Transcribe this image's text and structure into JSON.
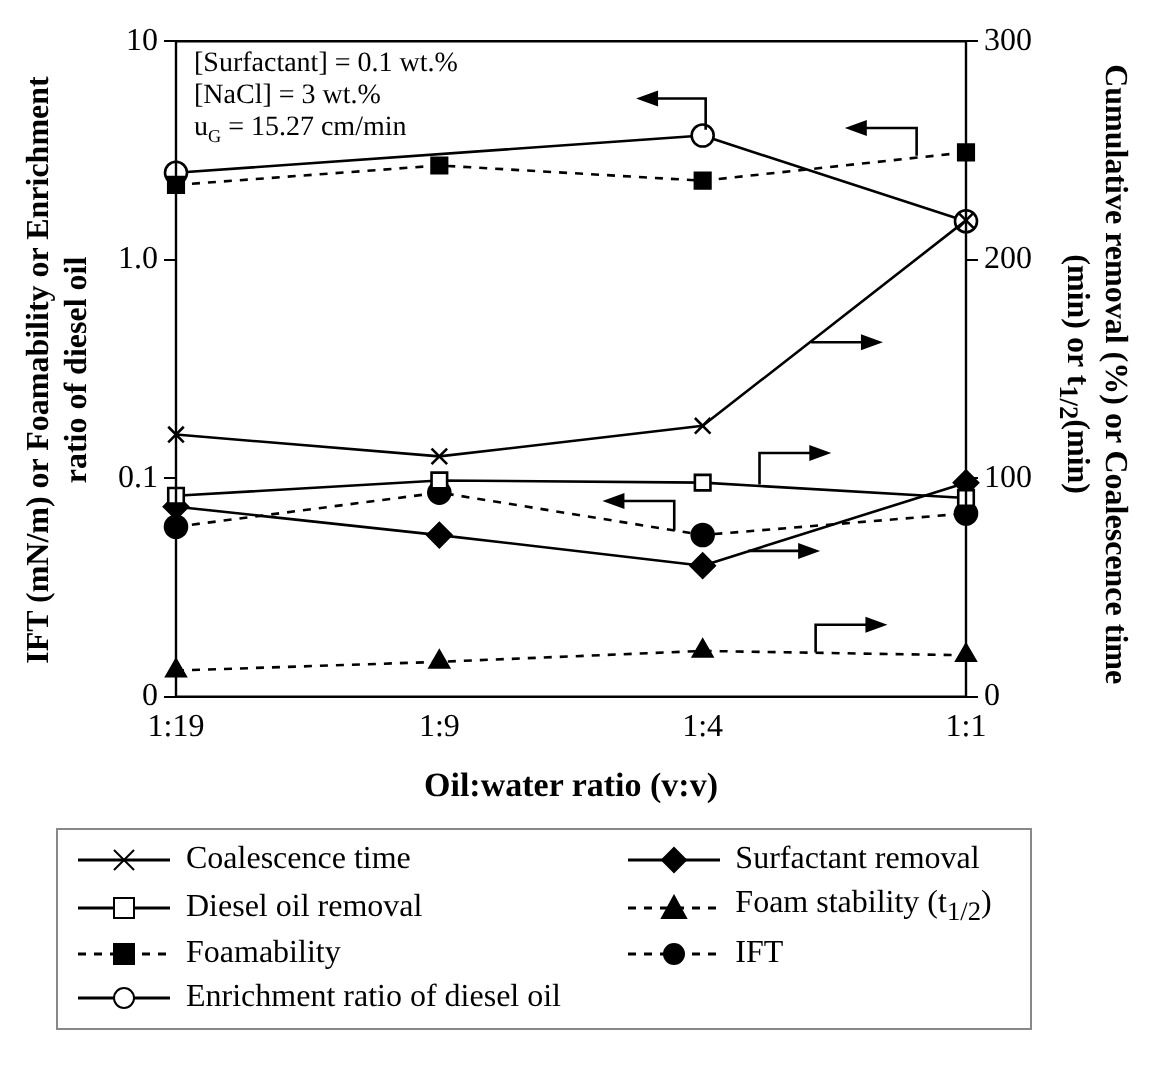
{
  "chart_data": {
    "type": "line",
    "xlabel": "Oil:water ratio (v:v)",
    "ylabel": "IFT (mN/m) or Foamability or Enrichment ratio of diesel oil",
    "y2label": "Cumulative removal (%) or Coalescence time (min) or t$_{1/2}$(min)",
    "categories": [
      "1:19",
      "1:9",
      "1:4",
      "1:1"
    ],
    "log": "y",
    "ylim": [
      0.01,
      10
    ],
    "yticks": [
      {
        "value": 0.01,
        "label": "0"
      },
      {
        "value": 0.1,
        "label": "0.1"
      },
      {
        "value": 1,
        "label": "1.0"
      },
      10
    ],
    "y2lim": [
      0,
      300
    ],
    "y2ticks": [
      0,
      100,
      200,
      300
    ],
    "grid": false,
    "legend": "bottom",
    "annotations": [
      "[Surfactant] = 0.1 wt.%",
      "[NaCl] = 3 wt.%",
      "u$_{G}$ = 15.27 cm/min"
    ],
    "series": [
      {
        "name": "Coalescence time",
        "color": "#000000",
        "axis": "y2",
        "marker": "cross",
        "line_style": "solid",
        "values": [
          120,
          110,
          124,
          218
        ]
      },
      {
        "name": "Diesel oil removal",
        "color": "#000000",
        "axis": "y2",
        "marker": "square-open",
        "line_style": "solid",
        "values": [
          92,
          99,
          98,
          91
        ]
      },
      {
        "name": "Foamability",
        "color": "#000000",
        "axis": "y",
        "marker": "square",
        "line_style": "dashed",
        "values": [
          2.2,
          2.7,
          2.3,
          3.1
        ]
      },
      {
        "name": "Enrichment ratio of diesel oil",
        "color": "#000000",
        "axis": "y",
        "marker": "circle-open",
        "line_style": "solid",
        "values": [
          2.5,
          null,
          3.7,
          1.5
        ]
      },
      {
        "name": "Surfactant removal",
        "color": "#000000",
        "axis": "y2",
        "marker": "diamond",
        "line_style": "solid",
        "values": [
          87,
          74,
          60,
          98
        ]
      },
      {
        "name": "Foam stability (t$_{1/2}$)",
        "color": "#000000",
        "axis": "y2",
        "marker": "triangle",
        "line_style": "dashed",
        "values": [
          12,
          16,
          21,
          19
        ]
      },
      {
        "name": "IFT",
        "color": "#000000",
        "axis": "y",
        "marker": "circle",
        "line_style": "dashed",
        "values": [
          0.06,
          0.086,
          0.055,
          0.069
        ]
      }
    ]
  }
}
